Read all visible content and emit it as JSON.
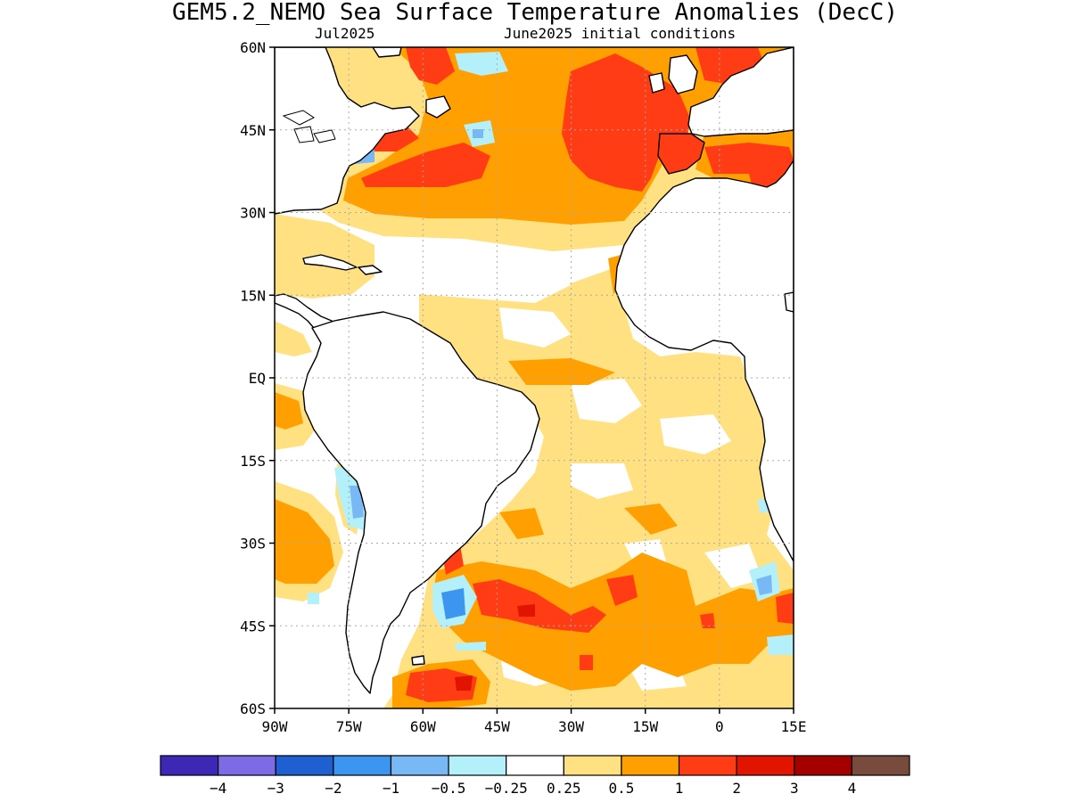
{
  "title": "GEM5.2_NEMO Sea Surface Temperature Anomalies (DecC)",
  "subtitle_left": "Jul2025",
  "subtitle_right": "June2025 initial conditions",
  "map": {
    "lon_range": [
      -90,
      15
    ],
    "lat_range": [
      -60,
      60
    ],
    "lat_ticks": [
      {
        "value": 60,
        "label": "60N"
      },
      {
        "value": 45,
        "label": "45N"
      },
      {
        "value": 30,
        "label": "30N"
      },
      {
        "value": 15,
        "label": "15N"
      },
      {
        "value": 0,
        "label": "EQ"
      },
      {
        "value": -15,
        "label": "15S"
      },
      {
        "value": -30,
        "label": "30S"
      },
      {
        "value": -45,
        "label": "45S"
      },
      {
        "value": -60,
        "label": "60S"
      }
    ],
    "lon_ticks": [
      {
        "value": -90,
        "label": "90W"
      },
      {
        "value": -75,
        "label": "75W"
      },
      {
        "value": -60,
        "label": "60W"
      },
      {
        "value": -45,
        "label": "45W"
      },
      {
        "value": -30,
        "label": "30W"
      },
      {
        "value": -15,
        "label": "15W"
      },
      {
        "value": 0,
        "label": "0"
      },
      {
        "value": 15,
        "label": "15E"
      }
    ],
    "grid": "dotted"
  },
  "colorbar": {
    "colors": [
      "#3c28b4",
      "#7d6be6",
      "#1e5fd2",
      "#3c96f0",
      "#78b9f5",
      "#b4f0fa",
      "#ffffff",
      "#ffe182",
      "#ffa000",
      "#ff3c14",
      "#e11400",
      "#a50000",
      "#784b3c"
    ],
    "labels": [
      "−4",
      "−3",
      "−2",
      "−1",
      "−0.5",
      "−0.25",
      "0.25",
      "0.5",
      "1",
      "2",
      "3",
      "4"
    ]
  }
}
